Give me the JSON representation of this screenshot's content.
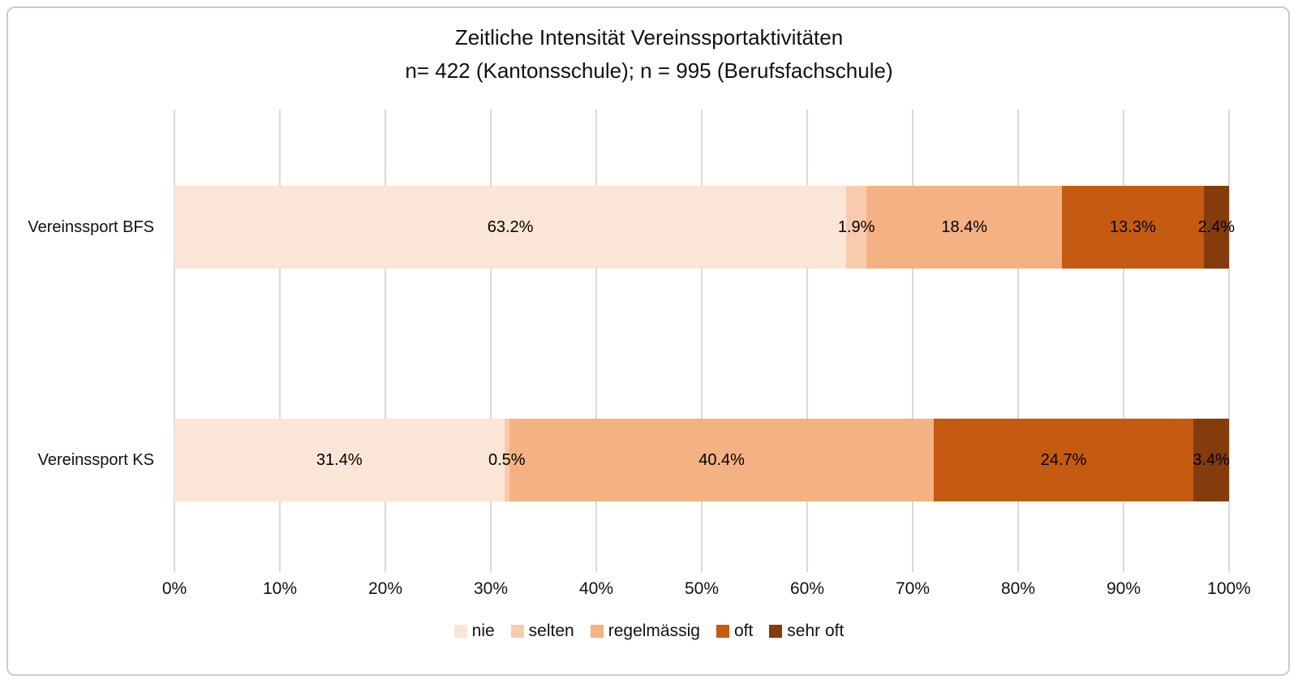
{
  "chart_data": {
    "type": "bar",
    "orientation": "horizontal",
    "stacked": true,
    "percent_stacked": true,
    "title": "Zeitliche Intensität Vereinssportaktivitäten",
    "subtitle": "n= 422 (Kantonsschule); n = 995 (Berufsfachschule)",
    "categories": [
      "Vereinssport BFS",
      "Vereinssport KS"
    ],
    "series": [
      {
        "name": "nie",
        "color": "#FBE5D6",
        "values": [
          63.2,
          31.4
        ]
      },
      {
        "name": "selten",
        "color": "#F8CBAD",
        "values": [
          1.9,
          0.5
        ]
      },
      {
        "name": "regelmässig",
        "color": "#F4B183",
        "values": [
          18.4,
          40.4
        ]
      },
      {
        "name": "oft",
        "color": "#C55A11",
        "values": [
          13.3,
          24.7
        ]
      },
      {
        "name": "sehr oft",
        "color": "#843C0C",
        "values": [
          2.4,
          3.4
        ]
      }
    ],
    "data_labels": [
      [
        "63.2%",
        "1.9%",
        "18.4%",
        "13.3%",
        "2.4%"
      ],
      [
        "31.4%",
        "0.5%",
        "40.4%",
        "24.7%",
        "3.4%"
      ]
    ],
    "x_ticks": [
      0,
      10,
      20,
      30,
      40,
      50,
      60,
      70,
      80,
      90,
      100
    ],
    "x_tick_labels": [
      "0%",
      "10%",
      "20%",
      "30%",
      "40%",
      "50%",
      "60%",
      "70%",
      "80%",
      "90%",
      "100%"
    ],
    "xlim": [
      0,
      100
    ],
    "grid": "vertical",
    "gridline_color": "#d9d9d9",
    "legend_position": "bottom",
    "legend_labels": [
      "nie",
      "selten",
      "regelmässig",
      "oft",
      "sehr oft"
    ]
  }
}
